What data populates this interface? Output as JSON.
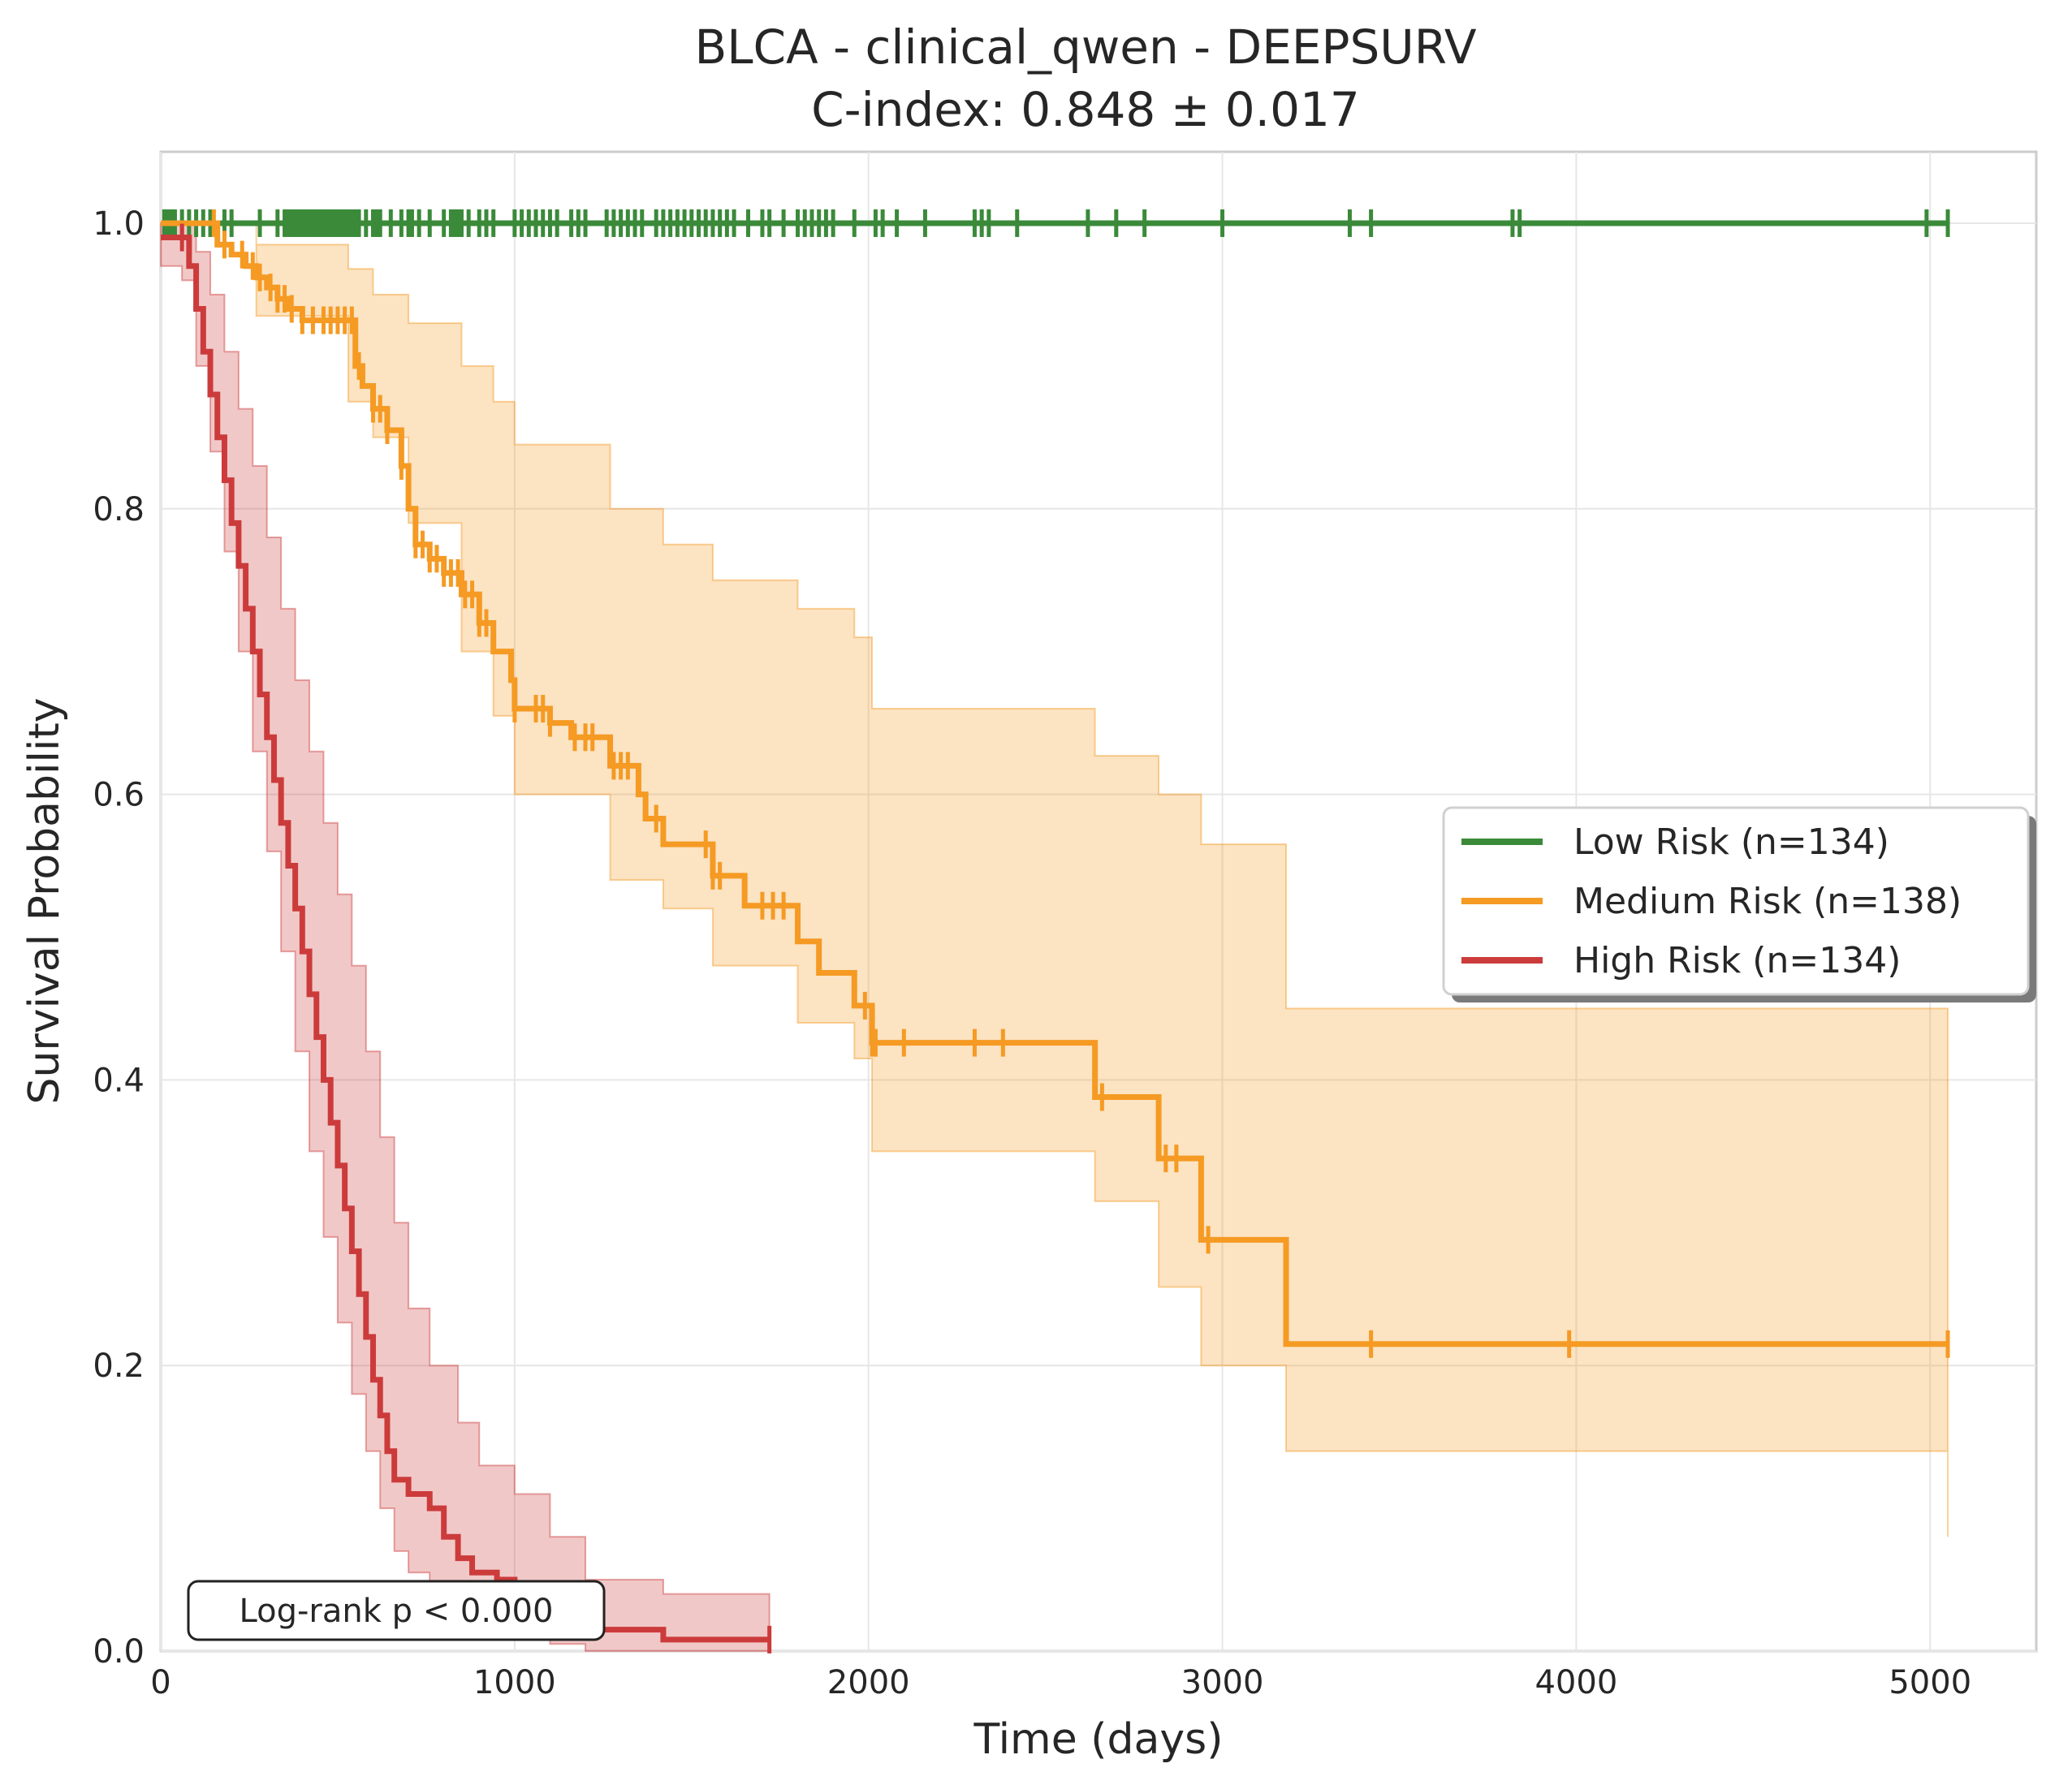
{
  "chart_data": {
    "type": "line",
    "subtype": "kaplan-meier",
    "title": "BLCA - clinical_qwen - DEEPSURV",
    "subtitle": "C-index: 0.848 ± 0.017",
    "xlabel": "Time (days)",
    "ylabel": "Survival Probability",
    "xlim": [
      0,
      5300
    ],
    "ylim": [
      0,
      1.05
    ],
    "x_ticks": [
      0,
      1000,
      2000,
      3000,
      4000,
      5000
    ],
    "y_ticks": [
      0.0,
      0.2,
      0.4,
      0.6,
      0.8,
      1.0
    ],
    "x_tick_labels": [
      "0",
      "1000",
      "2000",
      "3000",
      "4000",
      "5000"
    ],
    "y_tick_labels": [
      "0.0",
      "0.2",
      "0.4",
      "0.6",
      "0.8",
      "1.0"
    ],
    "grid": true,
    "legend_position": "center-right",
    "annotation": "Log-rank p < 0.000",
    "series": [
      {
        "name": "Low Risk (n=134)",
        "color": "#3a8a3a",
        "steps": [
          [
            0,
            1.0
          ],
          [
            5050,
            1.0
          ]
        ],
        "ci_upper": [],
        "ci_lower": [],
        "censor_times": [
          10,
          20,
          30,
          40,
          60,
          80,
          100,
          120,
          140,
          180,
          200,
          280,
          330,
          350,
          360,
          370,
          380,
          390,
          400,
          410,
          420,
          430,
          440,
          450,
          460,
          470,
          480,
          490,
          500,
          510,
          520,
          530,
          540,
          550,
          560,
          580,
          600,
          610,
          620,
          650,
          680,
          700,
          710,
          730,
          760,
          800,
          820,
          830,
          840,
          850,
          870,
          900,
          920,
          940,
          1000,
          1020,
          1040,
          1060,
          1080,
          1100,
          1120,
          1160,
          1180,
          1200,
          1260,
          1280,
          1300,
          1320,
          1340,
          1360,
          1400,
          1420,
          1440,
          1460,
          1480,
          1500,
          1520,
          1540,
          1560,
          1580,
          1600,
          1620,
          1660,
          1700,
          1720,
          1760,
          1800,
          1820,
          1840,
          1860,
          1880,
          1900,
          1960,
          2020,
          2040,
          2080,
          2160,
          2300,
          2320,
          2340,
          2420,
          2620,
          2700,
          2780,
          3000,
          3360,
          3420,
          3820,
          3840,
          4990,
          5050
        ]
      },
      {
        "name": "Medium Risk (n=138)",
        "color": "#f59a23",
        "steps": [
          [
            0,
            1.0
          ],
          [
            130,
            1.0
          ],
          [
            160,
            0.985
          ],
          [
            200,
            0.978
          ],
          [
            240,
            0.97
          ],
          [
            270,
            0.962
          ],
          [
            300,
            0.955
          ],
          [
            330,
            0.947
          ],
          [
            360,
            0.94
          ],
          [
            400,
            0.932
          ],
          [
            450,
            0.932
          ],
          [
            530,
            0.932
          ],
          [
            550,
            0.9
          ],
          [
            570,
            0.886
          ],
          [
            600,
            0.87
          ],
          [
            640,
            0.855
          ],
          [
            680,
            0.83
          ],
          [
            700,
            0.8
          ],
          [
            720,
            0.775
          ],
          [
            760,
            0.765
          ],
          [
            800,
            0.755
          ],
          [
            850,
            0.74
          ],
          [
            900,
            0.72
          ],
          [
            940,
            0.7
          ],
          [
            990,
            0.68
          ],
          [
            1000,
            0.66
          ],
          [
            1100,
            0.65
          ],
          [
            1160,
            0.64
          ],
          [
            1270,
            0.62
          ],
          [
            1350,
            0.6
          ],
          [
            1370,
            0.583
          ],
          [
            1420,
            0.565
          ],
          [
            1560,
            0.543
          ],
          [
            1650,
            0.522
          ],
          [
            1800,
            0.497
          ],
          [
            1860,
            0.475
          ],
          [
            1960,
            0.452
          ],
          [
            2010,
            0.426
          ],
          [
            2640,
            0.388
          ],
          [
            2820,
            0.345
          ],
          [
            2940,
            0.288
          ],
          [
            3180,
            0.215
          ],
          [
            5050,
            0.215
          ]
        ],
        "ci_upper": [
          [
            0,
            1.0
          ],
          [
            130,
            1.0
          ],
          [
            270,
            0.985
          ],
          [
            530,
            0.968
          ],
          [
            600,
            0.95
          ],
          [
            700,
            0.93
          ],
          [
            850,
            0.9
          ],
          [
            940,
            0.875
          ],
          [
            1000,
            0.845
          ],
          [
            1270,
            0.8
          ],
          [
            1420,
            0.775
          ],
          [
            1560,
            0.75
          ],
          [
            1800,
            0.73
          ],
          [
            1960,
            0.71
          ],
          [
            2010,
            0.66
          ],
          [
            2640,
            0.627
          ],
          [
            2820,
            0.6
          ],
          [
            2940,
            0.565
          ],
          [
            3180,
            0.45
          ],
          [
            5050,
            0.4
          ]
        ],
        "ci_lower": [
          [
            0,
            1.0
          ],
          [
            130,
            1.0
          ],
          [
            270,
            0.935
          ],
          [
            530,
            0.875
          ],
          [
            600,
            0.85
          ],
          [
            700,
            0.79
          ],
          [
            850,
            0.7
          ],
          [
            940,
            0.655
          ],
          [
            1000,
            0.6
          ],
          [
            1270,
            0.54
          ],
          [
            1420,
            0.52
          ],
          [
            1560,
            0.48
          ],
          [
            1800,
            0.44
          ],
          [
            1960,
            0.415
          ],
          [
            2010,
            0.35
          ],
          [
            2640,
            0.315
          ],
          [
            2820,
            0.255
          ],
          [
            2940,
            0.2
          ],
          [
            3180,
            0.14
          ],
          [
            5050,
            0.08
          ]
        ],
        "censor_times": [
          150,
          180,
          230,
          260,
          280,
          310,
          330,
          350,
          370,
          400,
          430,
          460,
          480,
          500,
          520,
          540,
          560,
          600,
          620,
          640,
          680,
          720,
          740,
          760,
          780,
          800,
          820,
          840,
          860,
          880,
          900,
          920,
          1000,
          1060,
          1080,
          1100,
          1170,
          1200,
          1220,
          1280,
          1300,
          1320,
          1400,
          1540,
          1560,
          1580,
          1700,
          1730,
          1760,
          1990,
          2010,
          2020,
          2100,
          2300,
          2380,
          2660,
          2840,
          2870,
          2960,
          3420,
          3980,
          5050
        ]
      },
      {
        "name": "High Risk (n=134)",
        "color": "#cc3b3b",
        "steps": [
          [
            0,
            0.99
          ],
          [
            60,
            0.99
          ],
          [
            80,
            0.97
          ],
          [
            100,
            0.94
          ],
          [
            120,
            0.91
          ],
          [
            140,
            0.88
          ],
          [
            160,
            0.85
          ],
          [
            180,
            0.82
          ],
          [
            200,
            0.79
          ],
          [
            220,
            0.76
          ],
          [
            240,
            0.73
          ],
          [
            260,
            0.7
          ],
          [
            280,
            0.67
          ],
          [
            300,
            0.64
          ],
          [
            320,
            0.61
          ],
          [
            340,
            0.58
          ],
          [
            360,
            0.55
          ],
          [
            380,
            0.52
          ],
          [
            400,
            0.49
          ],
          [
            420,
            0.46
          ],
          [
            440,
            0.43
          ],
          [
            460,
            0.4
          ],
          [
            480,
            0.37
          ],
          [
            500,
            0.34
          ],
          [
            520,
            0.31
          ],
          [
            540,
            0.28
          ],
          [
            560,
            0.25
          ],
          [
            580,
            0.22
          ],
          [
            600,
            0.19
          ],
          [
            620,
            0.165
          ],
          [
            640,
            0.14
          ],
          [
            660,
            0.12
          ],
          [
            700,
            0.11
          ],
          [
            760,
            0.1
          ],
          [
            800,
            0.08
          ],
          [
            840,
            0.065
          ],
          [
            880,
            0.055
          ],
          [
            950,
            0.05
          ],
          [
            1000,
            0.04
          ],
          [
            1050,
            0.03
          ],
          [
            1100,
            0.02
          ],
          [
            1200,
            0.015
          ],
          [
            1420,
            0.008
          ],
          [
            1720,
            0.008
          ]
        ],
        "ci_upper": [
          [
            0,
            1.0
          ],
          [
            60,
            1.0
          ],
          [
            100,
            0.98
          ],
          [
            140,
            0.95
          ],
          [
            180,
            0.91
          ],
          [
            220,
            0.87
          ],
          [
            260,
            0.83
          ],
          [
            300,
            0.78
          ],
          [
            340,
            0.73
          ],
          [
            380,
            0.68
          ],
          [
            420,
            0.63
          ],
          [
            460,
            0.58
          ],
          [
            500,
            0.53
          ],
          [
            540,
            0.48
          ],
          [
            580,
            0.42
          ],
          [
            620,
            0.36
          ],
          [
            660,
            0.3
          ],
          [
            700,
            0.24
          ],
          [
            760,
            0.2
          ],
          [
            840,
            0.16
          ],
          [
            900,
            0.13
          ],
          [
            1000,
            0.11
          ],
          [
            1100,
            0.08
          ],
          [
            1200,
            0.05
          ],
          [
            1420,
            0.04
          ],
          [
            1720,
            0.04
          ]
        ],
        "ci_lower": [
          [
            0,
            0.97
          ],
          [
            60,
            0.96
          ],
          [
            100,
            0.9
          ],
          [
            140,
            0.84
          ],
          [
            180,
            0.77
          ],
          [
            220,
            0.7
          ],
          [
            260,
            0.63
          ],
          [
            300,
            0.56
          ],
          [
            340,
            0.49
          ],
          [
            380,
            0.42
          ],
          [
            420,
            0.35
          ],
          [
            460,
            0.29
          ],
          [
            500,
            0.23
          ],
          [
            540,
            0.18
          ],
          [
            580,
            0.14
          ],
          [
            620,
            0.1
          ],
          [
            660,
            0.07
          ],
          [
            700,
            0.055
          ],
          [
            760,
            0.045
          ],
          [
            840,
            0.03
          ],
          [
            900,
            0.02
          ],
          [
            1000,
            0.01
          ],
          [
            1100,
            0.005
          ],
          [
            1200,
            0.0
          ],
          [
            1720,
            0.0
          ]
        ],
        "censor_times": [
          60,
          1720
        ]
      }
    ]
  }
}
